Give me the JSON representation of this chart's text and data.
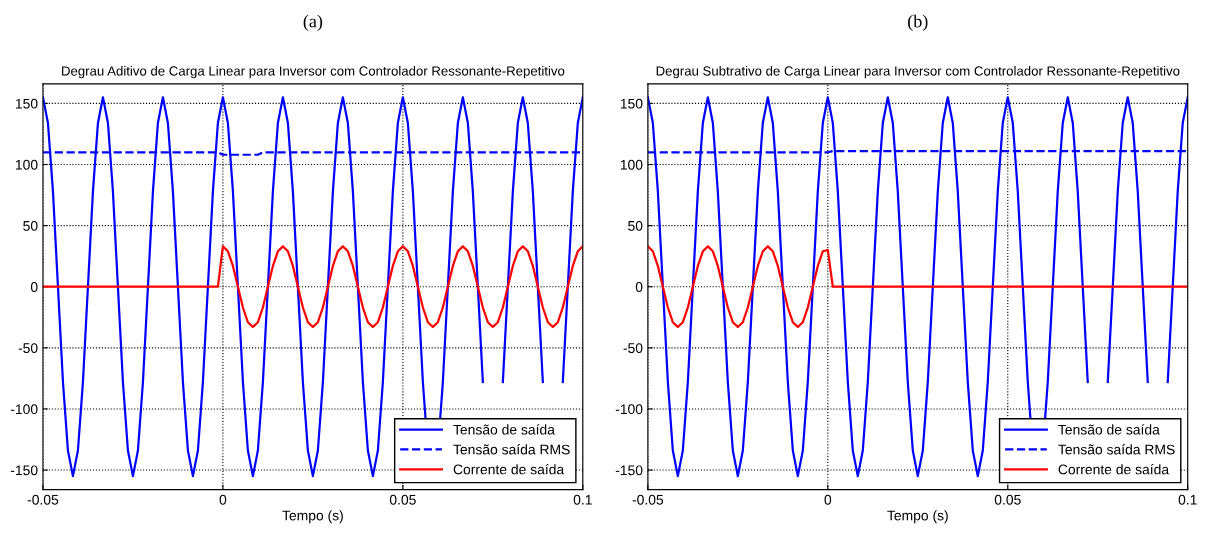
{
  "chart_data": [
    {
      "type": "line",
      "annotations": [
        "(a)"
      ],
      "title": "Degrau Aditivo de Carga Linear para Inversor com Controlador Ressonante-Repetitivo",
      "xlabel": "Tempo (s)",
      "x": [
        -0.05,
        -0.04861,
        -0.04722,
        -0.04583,
        -0.04444,
        -0.04306,
        -0.04167,
        -0.04028,
        -0.03889,
        -0.0375,
        -0.03611,
        -0.03472,
        -0.03333,
        -0.03194,
        -0.03056,
        -0.02917,
        -0.02778,
        -0.02639,
        -0.025,
        -0.02361,
        -0.02222,
        -0.02083,
        -0.01944,
        -0.01806,
        -0.01667,
        -0.01528,
        -0.01389,
        -0.0125,
        -0.01111,
        -0.00972,
        -0.00833,
        -0.00694,
        -0.00556,
        -0.00417,
        -0.00278,
        -0.00139,
        0,
        0.00139,
        0.00278,
        0.00417,
        0.00556,
        0.00694,
        0.00833,
        0.00972,
        0.01111,
        0.0125,
        0.01389,
        0.01528,
        0.01667,
        0.01806,
        0.01944,
        0.02083,
        0.02222,
        0.02361,
        0.025,
        0.02639,
        0.02778,
        0.02917,
        0.03056,
        0.03194,
        0.03333,
        0.03472,
        0.03611,
        0.0375,
        0.03889,
        0.04028,
        0.04167,
        0.04306,
        0.04444,
        0.04583,
        0.04722,
        0.04861,
        0.05,
        0.05139,
        0.05278,
        0.05417,
        0.05556,
        0.05694,
        0.05833,
        0.05972,
        0.06111,
        0.0625,
        0.06389,
        0.06528,
        0.06667,
        0.06806,
        0.06944,
        0.07083,
        0.07222,
        0.07361,
        0.075,
        0.07639,
        0.07778,
        0.07917,
        0.08056,
        0.08194,
        0.08333,
        0.08472,
        0.08611,
        0.0875,
        0.08889,
        0.09028,
        0.09167,
        0.09306,
        0.09444,
        0.09583,
        0.09722,
        0.09861,
        0.1
      ],
      "series": [
        {
          "name": "Tensão de saída",
          "color": "#0000ff",
          "line_style": "solid",
          "values": [
            155,
            134,
            78,
            0,
            -78,
            -134,
            -155,
            -134,
            -78,
            0,
            78,
            134,
            155,
            134,
            78,
            0,
            -78,
            -134,
            -155,
            -134,
            -78,
            0,
            78,
            134,
            155,
            134,
            78,
            0,
            -78,
            -134,
            -155,
            -134,
            -78,
            0,
            78,
            134,
            155,
            134,
            78,
            0,
            -78,
            -134,
            -155,
            -134,
            -78,
            0,
            78,
            134,
            155,
            134,
            78,
            0,
            -78,
            -134,
            -155,
            -134,
            -78,
            0,
            78,
            134,
            155,
            134,
            78,
            0,
            -78,
            -134,
            -155,
            -134,
            -78,
            0,
            78,
            134,
            155,
            134,
            78,
            0,
            -78,
            -134,
            null,
            -134,
            -78,
            0,
            78,
            134,
            155,
            134,
            78,
            0,
            -78,
            null,
            null,
            null,
            -78,
            0,
            78,
            134,
            155,
            134,
            78,
            0,
            -78,
            null,
            null,
            null,
            -78,
            0,
            78,
            134,
            155
          ]
        },
        {
          "name": "Tensão saída RMS",
          "color": "#0000ff",
          "line_style": "dashed",
          "values": [
            110,
            110,
            110,
            110,
            110,
            110,
            110,
            110,
            110,
            110,
            110,
            110,
            110,
            110,
            110,
            110,
            110,
            110,
            110,
            110,
            110,
            110,
            110,
            110,
            110,
            110,
            110,
            110,
            110,
            110,
            110,
            110,
            110,
            110,
            110,
            110,
            108,
            108,
            108,
            108,
            108,
            108,
            108,
            108,
            110,
            110,
            110,
            110,
            110,
            110,
            110,
            110,
            110,
            110,
            110,
            110,
            110,
            110,
            110,
            110,
            110,
            110,
            110,
            110,
            110,
            110,
            110,
            110,
            110,
            110,
            110,
            110,
            110,
            110,
            110,
            110,
            110,
            110,
            110,
            110,
            110,
            110,
            110,
            110,
            110,
            110,
            110,
            110,
            110,
            110,
            110,
            110,
            110,
            110,
            110,
            110,
            110,
            110,
            110,
            110,
            110,
            110,
            110,
            110,
            110,
            110,
            110,
            110,
            110
          ]
        },
        {
          "name": "Corrente de saída",
          "color": "#ff0000",
          "line_style": "solid",
          "values": [
            0,
            0,
            0,
            0,
            0,
            0,
            0,
            0,
            0,
            0,
            0,
            0,
            0,
            0,
            0,
            0,
            0,
            0,
            0,
            0,
            0,
            0,
            0,
            0,
            0,
            0,
            0,
            0,
            0,
            0,
            0,
            0,
            0,
            0,
            0,
            0,
            33,
            29,
            17,
            0,
            -17,
            -29,
            -33,
            -29,
            -17,
            0,
            17,
            29,
            33,
            29,
            17,
            0,
            -17,
            -29,
            -33,
            -29,
            -17,
            0,
            17,
            29,
            33,
            29,
            17,
            0,
            -17,
            -29,
            -33,
            -29,
            -17,
            0,
            17,
            29,
            33,
            29,
            17,
            0,
            -17,
            -29,
            -33,
            -29,
            -17,
            0,
            17,
            29,
            33,
            29,
            17,
            0,
            -17,
            -29,
            -33,
            -29,
            -17,
            0,
            17,
            29,
            33,
            29,
            17,
            0,
            -17,
            -29,
            -33,
            -29,
            -17,
            0,
            17,
            29,
            33
          ]
        }
      ],
      "xlim": [
        -0.05,
        0.1
      ],
      "xticks": [
        -0.05,
        0,
        0.05,
        0.1
      ],
      "ylim": [
        -166,
        166
      ],
      "yticks": [
        -150,
        -100,
        -50,
        0,
        50,
        100,
        150
      ],
      "grid": true,
      "legend": "bottom right"
    },
    {
      "type": "line",
      "annotations": [
        "(b)"
      ],
      "title": "Degrau Subtrativo de Carga Linear para Inversor com Controlador Ressonante-Repetitivo",
      "xlabel": "Tempo (s)",
      "x": [
        -0.05,
        -0.04861,
        -0.04722,
        -0.04583,
        -0.04444,
        -0.04306,
        -0.04167,
        -0.04028,
        -0.03889,
        -0.0375,
        -0.03611,
        -0.03472,
        -0.03333,
        -0.03194,
        -0.03056,
        -0.02917,
        -0.02778,
        -0.02639,
        -0.025,
        -0.02361,
        -0.02222,
        -0.02083,
        -0.01944,
        -0.01806,
        -0.01667,
        -0.01528,
        -0.01389,
        -0.0125,
        -0.01111,
        -0.00972,
        -0.00833,
        -0.00694,
        -0.00556,
        -0.00417,
        -0.00278,
        -0.00139,
        0,
        0.00139,
        0.00278,
        0.00417,
        0.00556,
        0.00694,
        0.00833,
        0.00972,
        0.01111,
        0.0125,
        0.01389,
        0.01528,
        0.01667,
        0.01806,
        0.01944,
        0.02083,
        0.02222,
        0.02361,
        0.025,
        0.02639,
        0.02778,
        0.02917,
        0.03056,
        0.03194,
        0.03333,
        0.03472,
        0.03611,
        0.0375,
        0.03889,
        0.04028,
        0.04167,
        0.04306,
        0.04444,
        0.04583,
        0.04722,
        0.04861,
        0.05,
        0.05139,
        0.05278,
        0.05417,
        0.05556,
        0.05694,
        0.05833,
        0.05972,
        0.06111,
        0.0625,
        0.06389,
        0.06528,
        0.06667,
        0.06806,
        0.06944,
        0.07083,
        0.07222,
        0.07361,
        0.075,
        0.07639,
        0.07778,
        0.07917,
        0.08056,
        0.08194,
        0.08333,
        0.08472,
        0.08611,
        0.0875,
        0.08889,
        0.09028,
        0.09167,
        0.09306,
        0.09444,
        0.09583,
        0.09722,
        0.09861,
        0.1
      ],
      "series": [
        {
          "name": "Tensão de saída",
          "color": "#0000ff",
          "line_style": "solid",
          "values": [
            155,
            134,
            78,
            0,
            -78,
            -134,
            -155,
            -134,
            -78,
            0,
            78,
            134,
            155,
            134,
            78,
            0,
            -78,
            -134,
            -155,
            -134,
            -78,
            0,
            78,
            134,
            155,
            134,
            78,
            0,
            -78,
            -134,
            -155,
            -134,
            -78,
            0,
            78,
            134,
            155,
            134,
            78,
            0,
            -78,
            -134,
            -155,
            -134,
            -78,
            0,
            78,
            134,
            155,
            134,
            78,
            0,
            -78,
            -134,
            -155,
            -134,
            -78,
            0,
            78,
            134,
            155,
            134,
            78,
            0,
            -78,
            -134,
            -155,
            -134,
            -78,
            0,
            78,
            134,
            155,
            134,
            78,
            0,
            -78,
            -134,
            null,
            -134,
            -78,
            0,
            78,
            134,
            155,
            134,
            78,
            0,
            -78,
            null,
            null,
            null,
            -78,
            0,
            78,
            134,
            155,
            134,
            78,
            0,
            -78,
            null,
            null,
            null,
            -78,
            0,
            78,
            134,
            155
          ]
        },
        {
          "name": "Tensão saída RMS",
          "color": "#0000ff",
          "line_style": "dashed",
          "values": [
            110,
            110,
            110,
            110,
            110,
            110,
            110,
            110,
            110,
            110,
            110,
            110,
            110,
            110,
            110,
            110,
            110,
            110,
            110,
            110,
            110,
            110,
            110,
            110,
            110,
            110,
            110,
            110,
            110,
            110,
            110,
            110,
            110,
            110,
            110,
            110,
            110,
            111,
            111,
            111,
            111,
            111,
            111,
            111,
            111,
            111,
            111,
            111,
            111,
            111,
            111,
            111,
            111,
            111,
            111,
            111,
            111,
            111,
            111,
            111,
            111,
            111,
            111,
            111,
            111,
            111,
            111,
            111,
            111,
            111,
            111,
            111,
            111,
            111,
            111,
            111,
            111,
            111,
            111,
            111,
            111,
            111,
            111,
            111,
            111,
            111,
            111,
            111,
            111,
            111,
            111,
            111,
            111,
            111,
            111,
            111,
            111,
            111,
            111,
            111,
            111,
            111,
            111,
            111,
            111,
            111,
            111,
            111,
            111
          ]
        },
        {
          "name": "Corrente de saída",
          "color": "#ff0000",
          "line_style": "solid",
          "values": [
            33,
            29,
            17,
            0,
            -17,
            -29,
            -33,
            -29,
            -17,
            0,
            17,
            29,
            33,
            29,
            17,
            0,
            -17,
            -29,
            -33,
            -29,
            -17,
            0,
            17,
            29,
            33,
            29,
            17,
            0,
            -17,
            -29,
            -33,
            -29,
            -17,
            0,
            17,
            29,
            30,
            0,
            0,
            0,
            0,
            0,
            0,
            0,
            0,
            0,
            0,
            0,
            0,
            0,
            0,
            0,
            0,
            0,
            0,
            0,
            0,
            0,
            0,
            0,
            0,
            0,
            0,
            0,
            0,
            0,
            0,
            0,
            0,
            0,
            0,
            0,
            0,
            0,
            0,
            0,
            0,
            0,
            0,
            0,
            0,
            0,
            0,
            0,
            0,
            0,
            0,
            0,
            0,
            0,
            0,
            0,
            0,
            0,
            0,
            0,
            0,
            0,
            0,
            0,
            0,
            0,
            0,
            0,
            0,
            0,
            0,
            0,
            0
          ]
        }
      ],
      "xlim": [
        -0.05,
        0.1
      ],
      "xticks": [
        -0.05,
        0,
        0.05,
        0.1
      ],
      "ylim": [
        -166,
        166
      ],
      "yticks": [
        -150,
        -100,
        -50,
        0,
        50,
        100,
        150
      ],
      "grid": true,
      "legend": "bottom right"
    }
  ]
}
